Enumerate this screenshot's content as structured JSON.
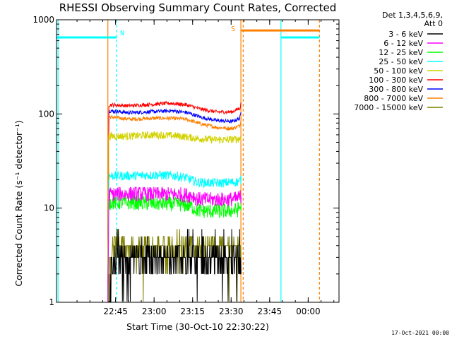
{
  "chart_data": {
    "type": "line",
    "title": "RHESSI Observing Summary Count Rates, Corrected",
    "xlabel": "Start Time (30-Oct-10 22:30:22)",
    "ylabel": "Corrected Count Rate (s⁻¹ detector⁻¹)",
    "y_scale": "log",
    "ylim": [
      1,
      1000
    ],
    "xlim_minutes_since_start": [
      -8.4,
      101.6
    ],
    "x_ticks": [
      {
        "minute": 14.6,
        "label": "22:45"
      },
      {
        "minute": 29.6,
        "label": "23:00"
      },
      {
        "minute": 44.6,
        "label": "23:15"
      },
      {
        "minute": 59.6,
        "label": "23:30"
      },
      {
        "minute": 74.6,
        "label": "23:45"
      },
      {
        "minute": 89.6,
        "label": "00:00"
      }
    ],
    "y_ticks": [
      {
        "value": 1,
        "label": "1"
      },
      {
        "value": 10,
        "label": "10"
      },
      {
        "value": 100,
        "label": "100"
      },
      {
        "value": 1000,
        "label": "1000"
      }
    ],
    "legend": {
      "header": [
        "Det 1,3,4,5,6,9,",
        "Att 0"
      ],
      "placement": "right"
    },
    "series": [
      {
        "name": "3 - 6 keV",
        "color": "#000000",
        "level": 3.0,
        "noise": 0.28,
        "start": 11.8,
        "end": 63.6
      },
      {
        "name": "6 - 12 keV",
        "color": "#ff00ff",
        "x": [
          12,
          20,
          30,
          40,
          45,
          46,
          50,
          56,
          62,
          63.6
        ],
        "y": [
          14,
          14.2,
          14,
          14,
          13.5,
          12.5,
          12.3,
          12.3,
          12.5,
          13.5
        ],
        "noise": 0.08
      },
      {
        "name": "12 - 25 keV",
        "color": "#00ff00",
        "x": [
          12,
          20,
          30,
          40,
          44,
          46,
          50,
          56,
          62,
          63.6
        ],
        "y": [
          11.5,
          11.5,
          11.2,
          11.0,
          10.5,
          9.5,
          9.3,
          9.3,
          9.5,
          10.5
        ],
        "noise": 0.08
      },
      {
        "name": "25 - 50 keV",
        "color": "#00ffff",
        "x": [
          12,
          20,
          30,
          38,
          42,
          46,
          50,
          56,
          62,
          63.6
        ],
        "y": [
          22,
          22,
          22.5,
          22,
          21,
          19,
          18.5,
          18.5,
          19,
          20
        ],
        "noise": 0.05
      },
      {
        "name": "50 - 100 keV",
        "color": "#d2d200",
        "x": [
          12,
          20,
          30,
          40,
          46,
          50,
          56,
          62,
          63.6
        ],
        "y": [
          58,
          58,
          60,
          58,
          55,
          54,
          53,
          54,
          56
        ],
        "noise": 0.04
      },
      {
        "name": "100 - 300 keV",
        "color": "#ff0000",
        "x": [
          12,
          20,
          30,
          36,
          42,
          48,
          54,
          60,
          63,
          63.6
        ],
        "y": [
          125,
          122,
          127,
          130,
          125,
          112,
          105,
          105,
          115,
          135
        ],
        "noise": 0.02
      },
      {
        "name": "300 - 800 keV",
        "color": "#0000ff",
        "x": [
          12,
          20,
          30,
          36,
          42,
          48,
          54,
          60,
          63,
          63.6
        ],
        "y": [
          108,
          103,
          106,
          108,
          104,
          92,
          85,
          83,
          90,
          110
        ],
        "noise": 0.02
      },
      {
        "name": "800 - 7000 keV",
        "color": "#ff8000",
        "x": [
          12,
          20,
          30,
          36,
          42,
          48,
          54,
          60,
          63,
          63.6
        ],
        "y": [
          93,
          88,
          90,
          90,
          88,
          78,
          72,
          70,
          75,
          95
        ],
        "noise": 0.02
      },
      {
        "name": "7000 - 15000 keV",
        "color": "#808000",
        "level": 4.0,
        "noise": 0.24,
        "start": 11.8,
        "end": 63.6
      }
    ],
    "annotations": [
      {
        "text": "N",
        "color": "#00ffff"
      },
      {
        "text": "S",
        "color": "#ff8000"
      }
    ],
    "bars": [
      {
        "name": "night",
        "color": "#00ffff",
        "segments": [
          [
            -8.4,
            15
          ],
          [
            79,
            94
          ]
        ],
        "level": 650
      },
      {
        "name": "saa",
        "color": "#ff8000",
        "segments": [
          [
            63.6,
            94
          ]
        ],
        "level": 770
      }
    ],
    "vlines": [
      {
        "minute": -7.8,
        "color": "#00ffff",
        "style": "solid"
      },
      {
        "minute": 15,
        "color": "#00ffff",
        "style": "dashed"
      },
      {
        "minute": 11.6,
        "color": "#ff8000",
        "style": "solid"
      },
      {
        "minute": 63.4,
        "color": "#ff8000",
        "style": "solid"
      },
      {
        "minute": 64.3,
        "color": "#ff8000",
        "style": "dashed"
      },
      {
        "minute": 79,
        "color": "#00ffff",
        "style": "solid"
      },
      {
        "minute": 94,
        "color": "#ff8000",
        "style": "dashed"
      }
    ],
    "grid": false
  },
  "footer": {
    "date": "17-Oct-2021 00:00"
  }
}
